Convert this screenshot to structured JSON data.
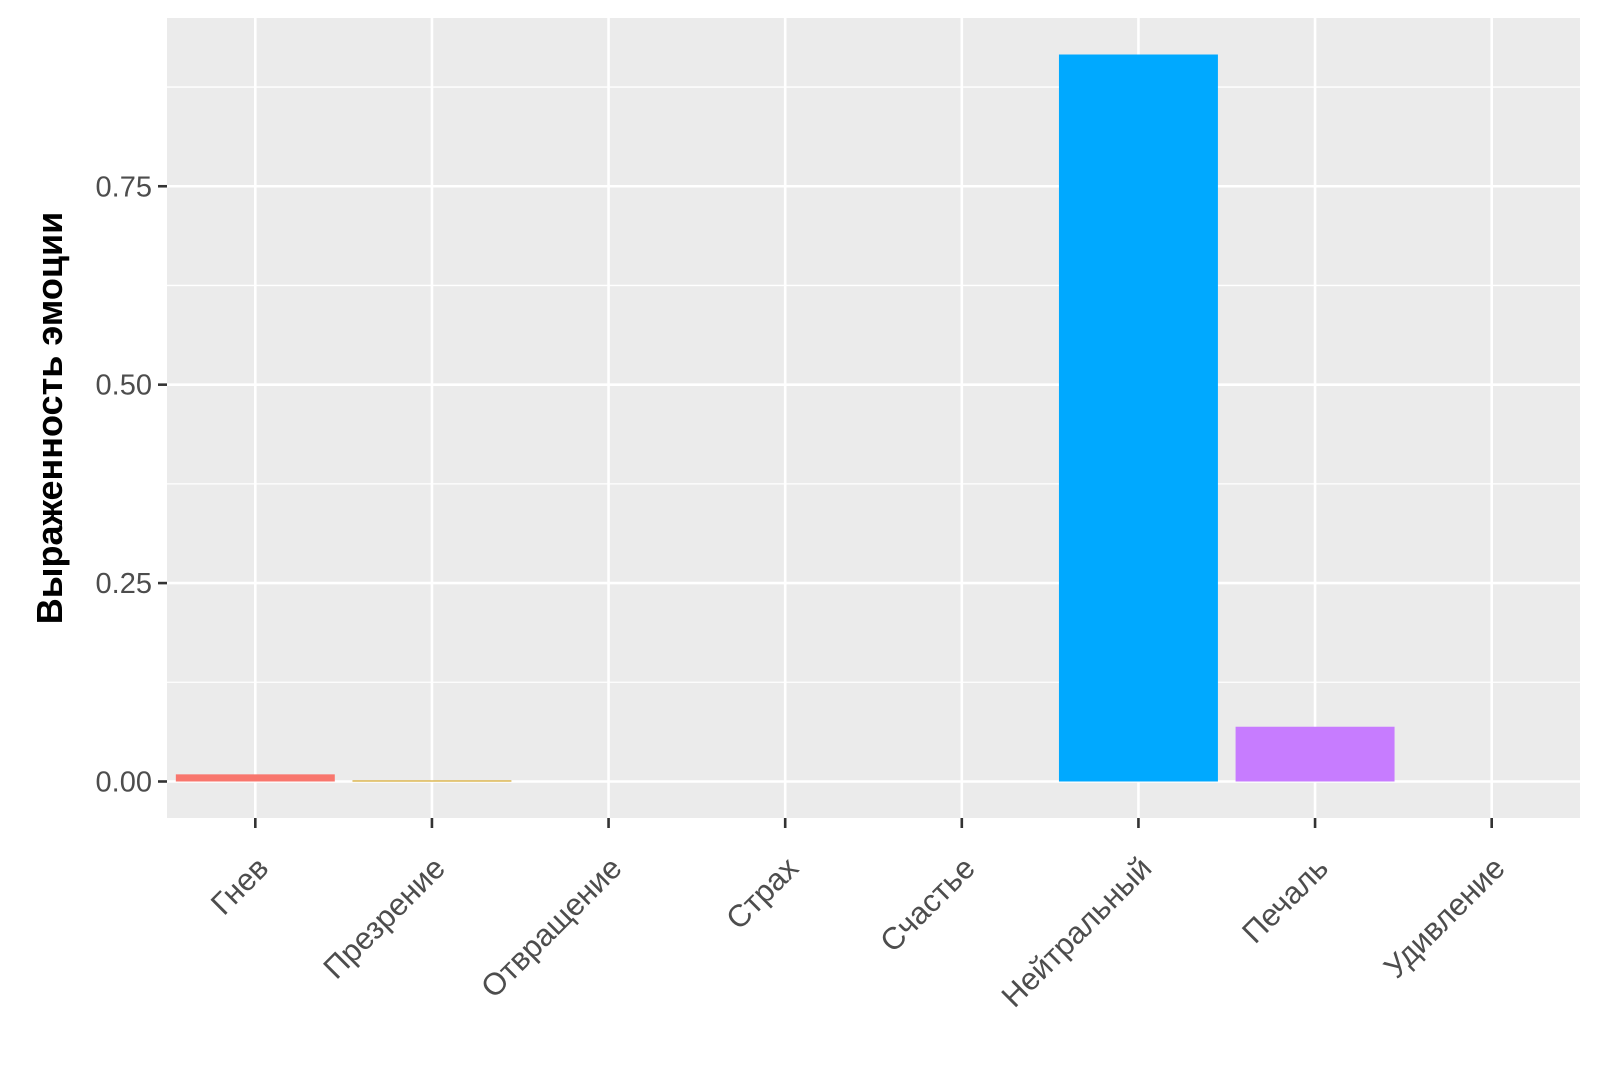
{
  "chart_data": {
    "type": "bar",
    "title": "",
    "xlabel": "",
    "ylabel": "Выраженность эмоции",
    "categories": [
      "Гнев",
      "Презрение",
      "Отвращение",
      "Страх",
      "Счастье",
      "Нейтральный",
      "Печаль",
      "Удивление"
    ],
    "values": [
      0.009,
      0.001,
      0.0,
      0.0,
      0.0,
      0.916,
      0.069,
      0.0
    ],
    "colors": [
      "#F8766D",
      "#CD9600",
      "#7CAE00",
      "#00BE67",
      "#00BFC4",
      "#00A9FF",
      "#C77CFF",
      "#FF61CC"
    ],
    "yticks": [
      "0.00",
      "0.25",
      "0.50",
      "0.75"
    ],
    "ylim": [
      -0.046,
      0.962
    ],
    "grid": true,
    "panel_background": "#EBEBEB",
    "legend": "none"
  }
}
